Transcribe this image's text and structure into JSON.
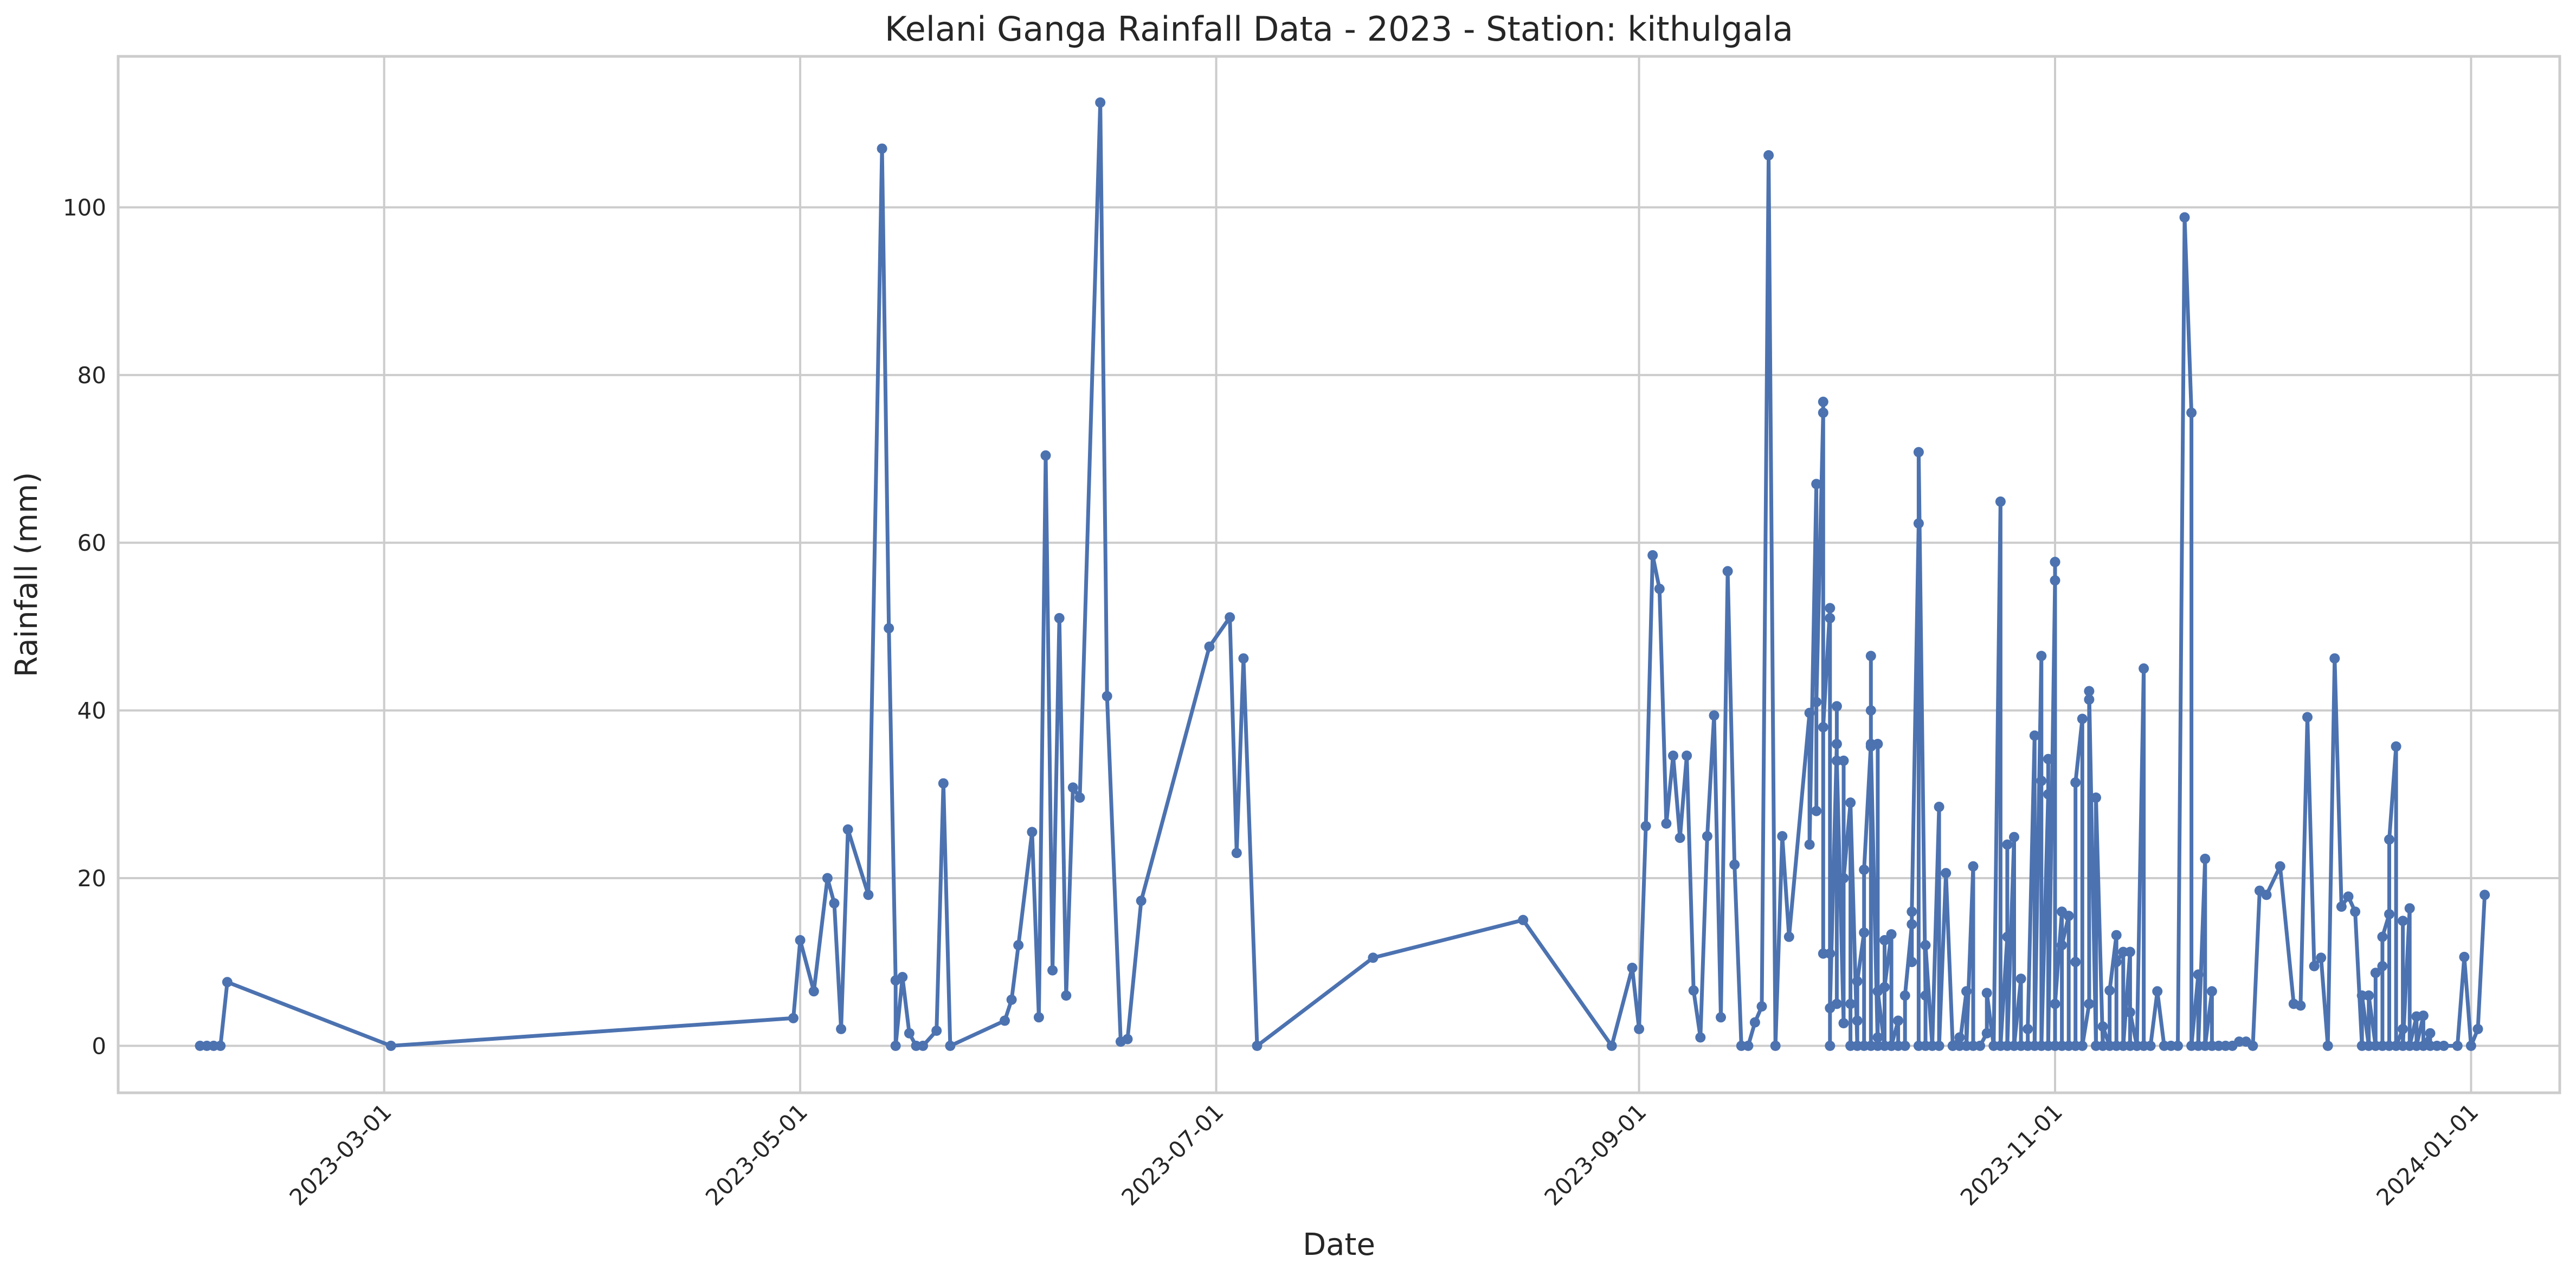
{
  "chart_data": {
    "type": "line",
    "title": "Kelani Ganga Rainfall Data - 2023 - Station: kithulgala",
    "xlabel": "Date",
    "ylabel": "Rainfall (mm)",
    "x_type": "date",
    "xlim": [
      "2023-01-21",
      "2024-01-14"
    ],
    "ylim": [
      -5.6,
      118
    ],
    "x_ticks": [
      "2023-03-01",
      "2023-05-01",
      "2023-07-01",
      "2023-09-01",
      "2023-11-01",
      "2024-01-01"
    ],
    "y_ticks": [
      0,
      20,
      40,
      60,
      80,
      100
    ],
    "grid": true,
    "legend": "none",
    "series": [
      {
        "color": "#4c72b0",
        "marker": "circle",
        "points": [
          [
            "2023-02-02",
            0
          ],
          [
            "2023-02-03",
            0
          ],
          [
            "2023-02-04",
            0
          ],
          [
            "2023-02-05",
            0
          ],
          [
            "2023-02-06",
            7.6
          ],
          [
            "2023-03-02",
            0
          ],
          [
            "2023-04-30",
            3.3
          ],
          [
            "2023-05-01",
            12.6
          ],
          [
            "2023-05-03",
            6.5
          ],
          [
            "2023-05-05",
            20
          ],
          [
            "2023-05-06",
            17
          ],
          [
            "2023-05-07",
            2
          ],
          [
            "2023-05-08",
            25.8
          ],
          [
            "2023-05-11",
            18
          ],
          [
            "2023-05-13",
            107
          ],
          [
            "2023-05-14",
            49.8
          ],
          [
            "2023-05-15",
            7.8
          ],
          [
            "2023-05-15",
            0
          ],
          [
            "2023-05-16",
            8.2
          ],
          [
            "2023-05-17",
            1.5
          ],
          [
            "2023-05-18",
            0
          ],
          [
            "2023-05-19",
            0
          ],
          [
            "2023-05-21",
            1.8
          ],
          [
            "2023-05-22",
            31.3
          ],
          [
            "2023-05-23",
            0
          ],
          [
            "2023-05-31",
            3
          ],
          [
            "2023-06-01",
            5.5
          ],
          [
            "2023-06-02",
            12
          ],
          [
            "2023-06-04",
            25.5
          ],
          [
            "2023-06-05",
            3.4
          ],
          [
            "2023-06-06",
            70.4
          ],
          [
            "2023-06-07",
            9
          ],
          [
            "2023-06-08",
            51
          ],
          [
            "2023-06-09",
            6
          ],
          [
            "2023-06-10",
            30.8
          ],
          [
            "2023-06-11",
            29.6
          ],
          [
            "2023-06-14",
            112.5
          ],
          [
            "2023-06-15",
            41.7
          ],
          [
            "2023-06-17",
            0.5
          ],
          [
            "2023-06-18",
            0.8
          ],
          [
            "2023-06-20",
            17.3
          ],
          [
            "2023-06-30",
            47.6
          ],
          [
            "2023-07-03",
            51.1
          ],
          [
            "2023-07-04",
            23
          ],
          [
            "2023-07-05",
            46.2
          ],
          [
            "2023-07-07",
            0
          ],
          [
            "2023-07-24",
            10.5
          ],
          [
            "2023-08-15",
            15
          ],
          [
            "2023-08-28",
            0
          ],
          [
            "2023-08-31",
            9.3
          ],
          [
            "2023-09-01",
            2
          ],
          [
            "2023-09-02",
            26.2
          ],
          [
            "2023-09-03",
            58.5
          ],
          [
            "2023-09-04",
            54.5
          ],
          [
            "2023-09-05",
            26.5
          ],
          [
            "2023-09-06",
            34.6
          ],
          [
            "2023-09-07",
            24.8
          ],
          [
            "2023-09-08",
            34.6
          ],
          [
            "2023-09-09",
            6.6
          ],
          [
            "2023-09-10",
            1
          ],
          [
            "2023-09-11",
            25
          ],
          [
            "2023-09-12",
            39.4
          ],
          [
            "2023-09-13",
            3.4
          ],
          [
            "2023-09-14",
            56.6
          ],
          [
            "2023-09-15",
            21.6
          ],
          [
            "2023-09-16",
            0
          ],
          [
            "2023-09-17",
            0
          ],
          [
            "2023-09-18",
            2.8
          ],
          [
            "2023-09-19",
            4.7
          ],
          [
            "2023-09-20",
            106.2
          ],
          [
            "2023-09-21",
            0
          ],
          [
            "2023-09-22",
            25
          ],
          [
            "2023-09-23",
            13
          ],
          [
            "2023-09-26",
            39.7
          ],
          [
            "2023-09-26",
            24
          ],
          [
            "2023-09-27",
            67
          ],
          [
            "2023-09-27",
            28
          ],
          [
            "2023-09-27",
            41
          ],
          [
            "2023-09-28",
            75.5
          ],
          [
            "2023-09-28",
            76.8
          ],
          [
            "2023-09-28",
            11
          ],
          [
            "2023-09-28",
            38
          ],
          [
            "2023-09-29",
            52.2
          ],
          [
            "2023-09-29",
            51
          ],
          [
            "2023-09-29",
            11
          ],
          [
            "2023-09-29",
            0
          ],
          [
            "2023-09-29",
            4.5
          ],
          [
            "2023-09-30",
            36
          ],
          [
            "2023-09-30",
            40.5
          ],
          [
            "2023-09-30",
            5
          ],
          [
            "2023-09-30",
            34
          ],
          [
            "2023-10-01",
            2.7
          ],
          [
            "2023-10-01",
            34
          ],
          [
            "2023-10-01",
            20
          ],
          [
            "2023-10-02",
            29
          ],
          [
            "2023-10-02",
            0
          ],
          [
            "2023-10-02",
            5
          ],
          [
            "2023-10-02",
            29
          ],
          [
            "2023-10-03",
            0
          ],
          [
            "2023-10-03",
            3
          ],
          [
            "2023-10-03",
            7.7
          ],
          [
            "2023-10-04",
            13.5
          ],
          [
            "2023-10-04",
            0
          ],
          [
            "2023-10-04",
            21
          ],
          [
            "2023-10-05",
            36
          ],
          [
            "2023-10-05",
            46.5
          ],
          [
            "2023-10-05",
            0
          ],
          [
            "2023-10-05",
            40
          ],
          [
            "2023-10-05",
            35.7
          ],
          [
            "2023-10-06",
            0
          ],
          [
            "2023-10-06",
            36
          ],
          [
            "2023-10-06",
            1
          ],
          [
            "2023-10-06",
            6.5
          ],
          [
            "2023-10-07",
            0
          ],
          [
            "2023-10-07",
            12.6
          ],
          [
            "2023-10-07",
            7
          ],
          [
            "2023-10-08",
            13.3
          ],
          [
            "2023-10-08",
            0
          ],
          [
            "2023-10-08",
            0
          ],
          [
            "2023-10-09",
            3
          ],
          [
            "2023-10-09",
            0
          ],
          [
            "2023-10-10",
            0
          ],
          [
            "2023-10-10",
            6
          ],
          [
            "2023-10-11",
            14.5
          ],
          [
            "2023-10-11",
            10
          ],
          [
            "2023-10-11",
            16
          ],
          [
            "2023-10-12",
            62.3
          ],
          [
            "2023-10-12",
            0
          ],
          [
            "2023-10-12",
            70.8
          ],
          [
            "2023-10-13",
            6
          ],
          [
            "2023-10-13",
            0
          ],
          [
            "2023-10-13",
            12
          ],
          [
            "2023-10-14",
            0
          ],
          [
            "2023-10-15",
            28.5
          ],
          [
            "2023-10-15",
            0
          ],
          [
            "2023-10-16",
            20.6
          ],
          [
            "2023-10-17",
            0
          ],
          [
            "2023-10-17",
            0
          ],
          [
            "2023-10-18",
            1
          ],
          [
            "2023-10-18",
            0
          ],
          [
            "2023-10-19",
            6.5
          ],
          [
            "2023-10-19",
            0
          ],
          [
            "2023-10-20",
            21.4
          ],
          [
            "2023-10-20",
            0
          ],
          [
            "2023-10-21",
            0
          ],
          [
            "2023-10-22",
            1.5
          ],
          [
            "2023-10-22",
            6.3
          ],
          [
            "2023-10-23",
            0
          ],
          [
            "2023-10-24",
            64.9
          ],
          [
            "2023-10-24",
            0
          ],
          [
            "2023-10-25",
            13
          ],
          [
            "2023-10-25",
            24
          ],
          [
            "2023-10-25",
            0
          ],
          [
            "2023-10-26",
            24.9
          ],
          [
            "2023-10-26",
            0
          ],
          [
            "2023-10-27",
            8
          ],
          [
            "2023-10-27",
            0
          ],
          [
            "2023-10-28",
            0
          ],
          [
            "2023-10-28",
            2
          ],
          [
            "2023-10-29",
            37
          ],
          [
            "2023-10-29",
            0
          ],
          [
            "2023-10-30",
            46.5
          ],
          [
            "2023-10-30",
            31.6
          ],
          [
            "2023-10-30",
            0
          ],
          [
            "2023-10-31",
            30
          ],
          [
            "2023-10-31",
            34.2
          ],
          [
            "2023-10-31",
            0
          ],
          [
            "2023-11-01",
            55.5
          ],
          [
            "2023-11-01",
            57.7
          ],
          [
            "2023-11-01",
            57.7
          ],
          [
            "2023-11-01",
            0
          ],
          [
            "2023-11-01",
            5
          ],
          [
            "2023-11-02",
            16
          ],
          [
            "2023-11-02",
            0
          ],
          [
            "2023-11-02",
            12
          ],
          [
            "2023-11-03",
            15.5
          ],
          [
            "2023-11-03",
            0
          ],
          [
            "2023-11-04",
            0
          ],
          [
            "2023-11-04",
            10
          ],
          [
            "2023-11-04",
            31.4
          ],
          [
            "2023-11-05",
            39
          ],
          [
            "2023-11-05",
            0
          ],
          [
            "2023-11-06",
            5
          ],
          [
            "2023-11-06",
            41.3
          ],
          [
            "2023-11-06",
            42.3
          ],
          [
            "2023-11-07",
            0
          ],
          [
            "2023-11-07",
            29.6
          ],
          [
            "2023-11-08",
            0
          ],
          [
            "2023-11-08",
            2.3
          ],
          [
            "2023-11-09",
            0
          ],
          [
            "2023-11-09",
            6.6
          ],
          [
            "2023-11-10",
            13.2
          ],
          [
            "2023-11-10",
            0
          ],
          [
            "2023-11-10",
            10
          ],
          [
            "2023-11-11",
            11.2
          ],
          [
            "2023-11-11",
            0
          ],
          [
            "2023-11-12",
            11.2
          ],
          [
            "2023-11-12",
            0
          ],
          [
            "2023-11-12",
            4
          ],
          [
            "2023-11-13",
            0
          ],
          [
            "2023-11-13",
            0
          ],
          [
            "2023-11-14",
            45
          ],
          [
            "2023-11-14",
            0
          ],
          [
            "2023-11-15",
            0
          ],
          [
            "2023-11-16",
            6.5
          ],
          [
            "2023-11-17",
            0
          ],
          [
            "2023-11-18",
            0
          ],
          [
            "2023-11-19",
            0
          ],
          [
            "2023-11-20",
            98.8
          ],
          [
            "2023-11-21",
            75.5
          ],
          [
            "2023-11-21",
            0
          ],
          [
            "2023-11-22",
            8.5
          ],
          [
            "2023-11-22",
            0
          ],
          [
            "2023-11-23",
            22.3
          ],
          [
            "2023-11-23",
            0
          ],
          [
            "2023-11-24",
            6.5
          ],
          [
            "2023-11-24",
            0
          ],
          [
            "2023-11-25",
            0
          ],
          [
            "2023-11-26",
            0
          ],
          [
            "2023-11-27",
            0
          ],
          [
            "2023-11-28",
            0.5
          ],
          [
            "2023-11-29",
            0.5
          ],
          [
            "2023-11-30",
            0
          ],
          [
            "2023-12-01",
            18.5
          ],
          [
            "2023-12-02",
            18
          ],
          [
            "2023-12-04",
            21.4
          ],
          [
            "2023-12-06",
            5
          ],
          [
            "2023-12-07",
            4.8
          ],
          [
            "2023-12-08",
            39.2
          ],
          [
            "2023-12-09",
            9.5
          ],
          [
            "2023-12-10",
            10.5
          ],
          [
            "2023-12-11",
            0
          ],
          [
            "2023-12-12",
            46.2
          ],
          [
            "2023-12-13",
            16.6
          ],
          [
            "2023-12-14",
            17.8
          ],
          [
            "2023-12-15",
            16
          ],
          [
            "2023-12-16",
            0
          ],
          [
            "2023-12-16",
            6
          ],
          [
            "2023-12-17",
            0
          ],
          [
            "2023-12-17",
            6
          ],
          [
            "2023-12-18",
            0
          ],
          [
            "2023-12-18",
            8.7
          ],
          [
            "2023-12-19",
            9.5
          ],
          [
            "2023-12-19",
            0
          ],
          [
            "2023-12-19",
            13
          ],
          [
            "2023-12-20",
            15.7
          ],
          [
            "2023-12-20",
            0
          ],
          [
            "2023-12-20",
            24.6
          ],
          [
            "2023-12-21",
            35.7
          ],
          [
            "2023-12-21",
            0
          ],
          [
            "2023-12-22",
            2
          ],
          [
            "2023-12-22",
            14.9
          ],
          [
            "2023-12-22",
            0
          ],
          [
            "2023-12-23",
            16.4
          ],
          [
            "2023-12-23",
            0
          ],
          [
            "2023-12-24",
            3.5
          ],
          [
            "2023-12-24",
            0
          ],
          [
            "2023-12-25",
            3.6
          ],
          [
            "2023-12-25",
            0
          ],
          [
            "2023-12-26",
            1.5
          ],
          [
            "2023-12-26",
            0
          ],
          [
            "2023-12-27",
            0
          ],
          [
            "2023-12-28",
            0
          ],
          [
            "2023-12-30",
            0
          ],
          [
            "2023-12-31",
            10.6
          ],
          [
            "2024-01-01",
            0
          ],
          [
            "2024-01-02",
            2
          ],
          [
            "2024-01-03",
            18
          ]
        ]
      }
    ]
  }
}
